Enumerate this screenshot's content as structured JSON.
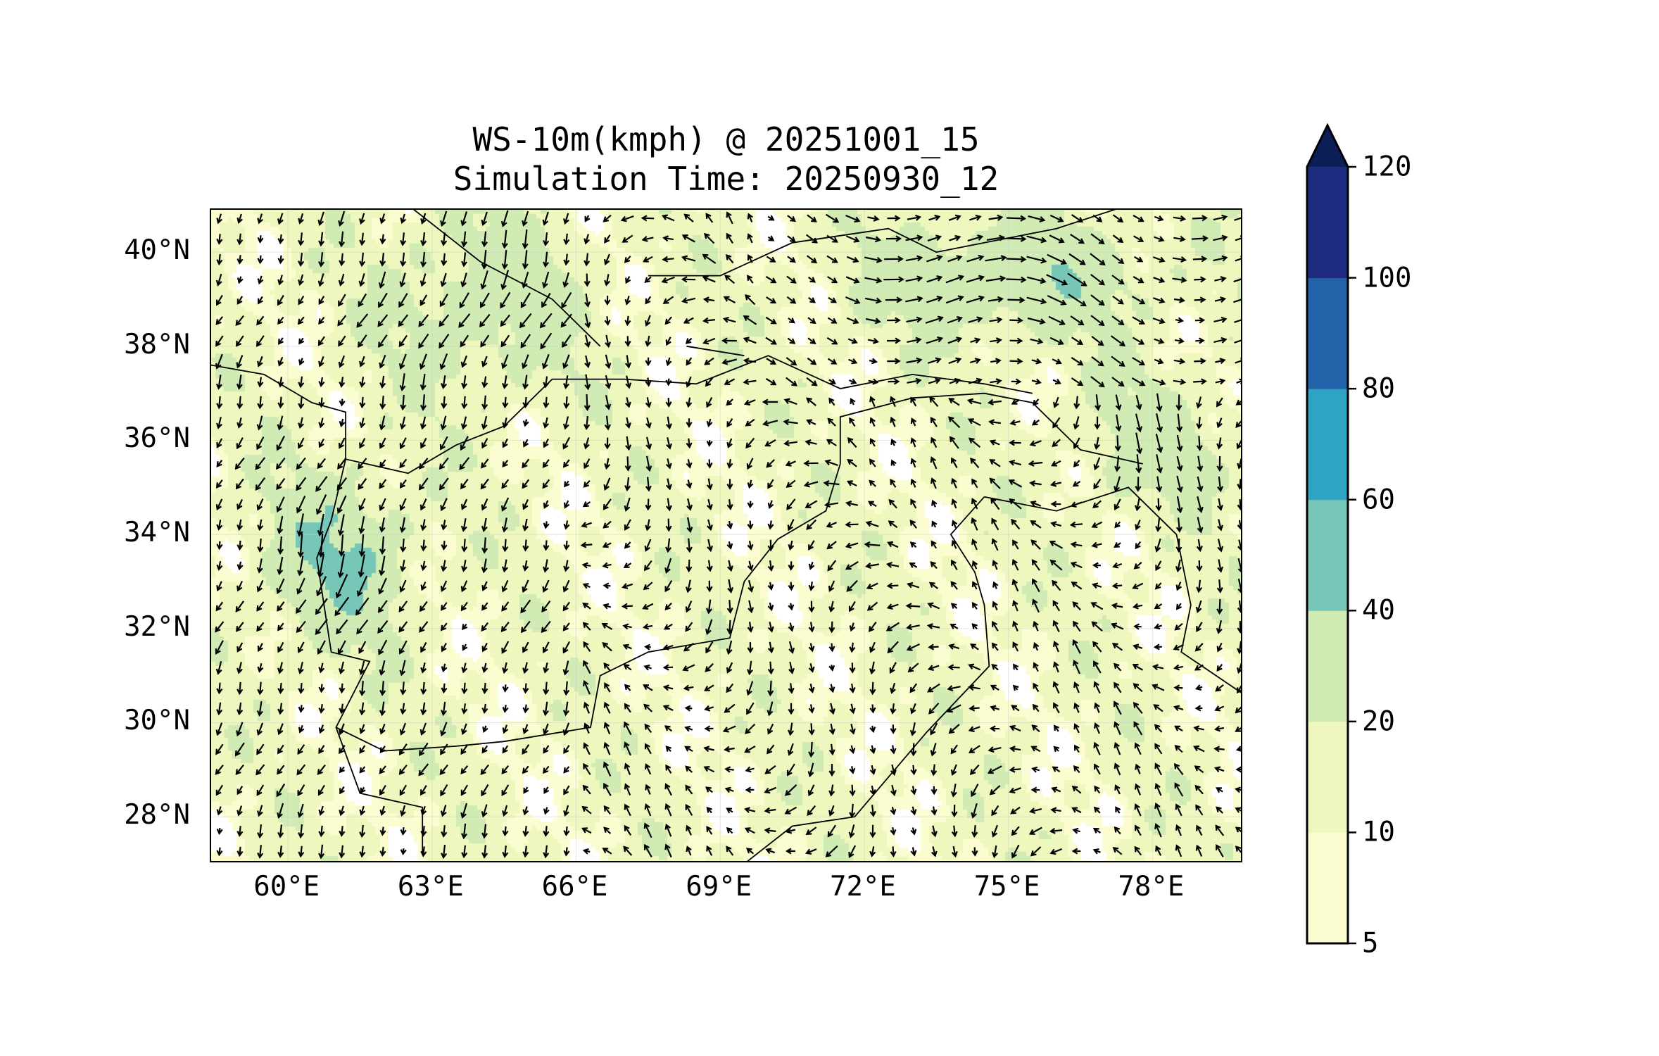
{
  "title": {
    "line1": "WS-10m(kmph) @ 20251001_15",
    "line2": "Simulation Time: 20250930_12"
  },
  "chart_data": {
    "type": "heatmap",
    "title": "WS-10m(kmph) @ 20251001_15 / Simulation Time: 20250930_12",
    "variable": "10 m wind speed (kmph) with wind vectors",
    "lon_range": [
      58.4,
      79.9
    ],
    "lat_range": [
      27.0,
      40.9
    ],
    "x_ticks": [
      "60°E",
      "63°E",
      "66°E",
      "69°E",
      "72°E",
      "75°E",
      "78°E"
    ],
    "x_tick_values": [
      60,
      63,
      66,
      69,
      72,
      75,
      78
    ],
    "y_ticks": [
      "40°N",
      "38°N",
      "36°N",
      "34°N",
      "32°N",
      "30°N",
      "28°N"
    ],
    "y_tick_values": [
      40,
      38,
      36,
      34,
      32,
      30,
      28
    ],
    "colorbar": {
      "levels": [
        5,
        10,
        20,
        40,
        60,
        80,
        100,
        120
      ],
      "labels": [
        "5",
        "10",
        "20",
        "40",
        "60",
        "80",
        "100",
        "120"
      ],
      "colors": [
        "#fbfdd0",
        "#eef7bd",
        "#d0ebb3",
        "#77c7b9",
        "#2ea3c3",
        "#2262a8",
        "#1d2b80"
      ],
      "extend_color": "#0b1f56",
      "extend": "max"
    }
  }
}
